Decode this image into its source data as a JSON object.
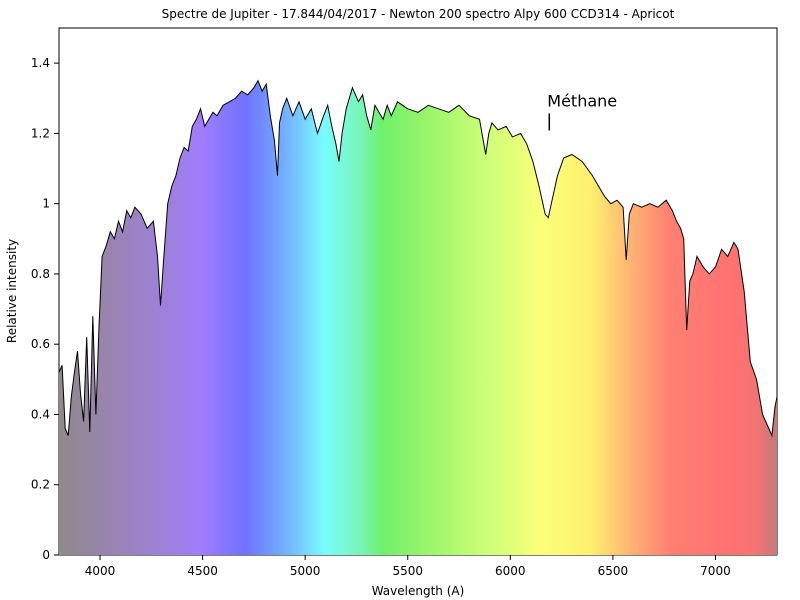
{
  "chart_data": {
    "type": "area",
    "title": "Spectre de Jupiter - 17.844/04/2017 - Newton 200 spectro Alpy 600 CCD314 - Apricot",
    "xlabel": "Wavelength (A)",
    "ylabel": "Relative intensity",
    "xlim": [
      3800,
      7300
    ],
    "ylim": [
      0,
      1.5
    ],
    "x_ticks": [
      4000,
      4500,
      5000,
      5500,
      6000,
      6500,
      7000
    ],
    "y_ticks": [
      0,
      0.2,
      0.4,
      0.6,
      0.8,
      1,
      1.2,
      1.4
    ],
    "x_tick_labels": [
      "4000",
      "4500",
      "5000",
      "5500",
      "6000",
      "6500",
      "7000"
    ],
    "y_tick_labels": [
      "0",
      "0.2",
      "0.4",
      "0.6",
      "0.8",
      "1",
      "1.2",
      "1.4"
    ],
    "grid": false,
    "legend": "none",
    "fill": "visible-spectrum gradient",
    "line_color": "#000000",
    "annotations": [
      {
        "text": "Méthane",
        "x": 6190,
        "y": 1.2
      }
    ],
    "x": [
      3800,
      3815,
      3830,
      3845,
      3860,
      3875,
      3890,
      3905,
      3920,
      3935,
      3950,
      3965,
      3980,
      3995,
      4010,
      4030,
      4050,
      4070,
      4090,
      4110,
      4130,
      4150,
      4170,
      4200,
      4230,
      4260,
      4280,
      4295,
      4310,
      4330,
      4350,
      4370,
      4390,
      4410,
      4430,
      4450,
      4470,
      4490,
      4510,
      4530,
      4550,
      4570,
      4600,
      4630,
      4660,
      4690,
      4720,
      4750,
      4770,
      4790,
      4810,
      4830,
      4850,
      4865,
      4875,
      4890,
      4910,
      4940,
      4970,
      5000,
      5030,
      5060,
      5090,
      5110,
      5130,
      5150,
      5165,
      5180,
      5200,
      5230,
      5260,
      5280,
      5300,
      5320,
      5340,
      5360,
      5380,
      5400,
      5420,
      5450,
      5500,
      5550,
      5600,
      5650,
      5700,
      5750,
      5800,
      5850,
      5880,
      5895,
      5910,
      5940,
      5980,
      6010,
      6050,
      6080,
      6110,
      6140,
      6170,
      6185,
      6200,
      6230,
      6260,
      6300,
      6350,
      6400,
      6430,
      6460,
      6490,
      6520,
      6550,
      6565,
      6580,
      6600,
      6640,
      6680,
      6720,
      6760,
      6790,
      6810,
      6830,
      6845,
      6860,
      6875,
      6890,
      6910,
      6940,
      6970,
      7000,
      7030,
      7060,
      7090,
      7110,
      7140,
      7170,
      7200,
      7230,
      7260,
      7275,
      7290,
      7300
    ],
    "y": [
      0.52,
      0.54,
      0.36,
      0.34,
      0.45,
      0.52,
      0.58,
      0.46,
      0.38,
      0.62,
      0.35,
      0.68,
      0.4,
      0.65,
      0.85,
      0.88,
      0.92,
      0.9,
      0.95,
      0.92,
      0.98,
      0.96,
      0.99,
      0.97,
      0.93,
      0.95,
      0.85,
      0.71,
      0.84,
      1.0,
      1.05,
      1.08,
      1.13,
      1.16,
      1.15,
      1.22,
      1.24,
      1.27,
      1.22,
      1.24,
      1.26,
      1.25,
      1.28,
      1.29,
      1.3,
      1.32,
      1.31,
      1.33,
      1.35,
      1.32,
      1.34,
      1.25,
      1.18,
      1.08,
      1.23,
      1.27,
      1.3,
      1.25,
      1.29,
      1.24,
      1.27,
      1.2,
      1.25,
      1.28,
      1.22,
      1.17,
      1.12,
      1.2,
      1.27,
      1.33,
      1.29,
      1.31,
      1.25,
      1.21,
      1.28,
      1.26,
      1.24,
      1.28,
      1.25,
      1.29,
      1.27,
      1.26,
      1.28,
      1.27,
      1.26,
      1.28,
      1.25,
      1.24,
      1.14,
      1.2,
      1.23,
      1.21,
      1.22,
      1.19,
      1.2,
      1.17,
      1.12,
      1.05,
      0.97,
      0.96,
      1.0,
      1.08,
      1.13,
      1.14,
      1.12,
      1.08,
      1.05,
      1.02,
      1.0,
      1.01,
      0.99,
      0.84,
      0.97,
      1.0,
      0.99,
      1.0,
      0.99,
      1.01,
      0.98,
      0.95,
      0.93,
      0.9,
      0.64,
      0.78,
      0.8,
      0.85,
      0.82,
      0.8,
      0.82,
      0.87,
      0.85,
      0.89,
      0.87,
      0.75,
      0.55,
      0.5,
      0.4,
      0.36,
      0.34,
      0.42,
      0.45
    ]
  }
}
